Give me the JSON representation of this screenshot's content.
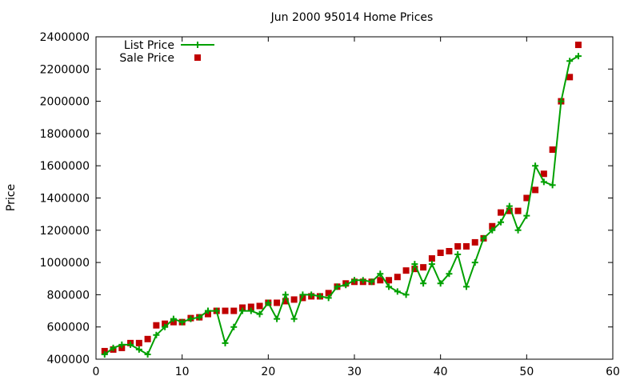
{
  "chart_data": {
    "type": "line",
    "title": "Jun 2000 95014 Home Prices",
    "xlabel": "",
    "ylabel": "Price",
    "xlim": [
      0,
      60
    ],
    "ylim": [
      400000,
      2400000
    ],
    "x_ticks": [
      0,
      10,
      20,
      30,
      40,
      50,
      60
    ],
    "y_ticks": [
      400000,
      600000,
      800000,
      1000000,
      1200000,
      1400000,
      1600000,
      1800000,
      2000000,
      2200000,
      2400000
    ],
    "x_tick_labels": [
      "0",
      "10",
      "20",
      "30",
      "40",
      "50",
      "60"
    ],
    "y_tick_labels": [
      "400000",
      "600000",
      "800000",
      "1000000",
      "1200000",
      "1400000",
      "1600000",
      "1800000",
      "2000000",
      "2200000",
      "2400000"
    ],
    "grid": false,
    "legend_position": "top-left",
    "x": [
      1,
      2,
      3,
      4,
      5,
      6,
      7,
      8,
      9,
      10,
      11,
      12,
      13,
      14,
      15,
      16,
      17,
      18,
      19,
      20,
      21,
      22,
      23,
      24,
      25,
      26,
      27,
      28,
      29,
      30,
      31,
      32,
      33,
      34,
      35,
      36,
      37,
      38,
      39,
      40,
      41,
      42,
      43,
      44,
      45,
      46,
      47,
      48,
      49,
      50,
      51,
      52,
      53,
      54,
      55,
      56
    ],
    "series": [
      {
        "name": "List Price",
        "style": "line-plus",
        "color": "#00a000",
        "values": [
          430000,
          470000,
          490000,
          490000,
          460000,
          430000,
          550000,
          600000,
          650000,
          630000,
          650000,
          660000,
          700000,
          700000,
          500000,
          600000,
          700000,
          700000,
          680000,
          750000,
          650000,
          800000,
          650000,
          800000,
          800000,
          790000,
          780000,
          850000,
          860000,
          890000,
          890000,
          880000,
          930000,
          850000,
          820000,
          800000,
          990000,
          870000,
          990000,
          870000,
          930000,
          1050000,
          850000,
          1000000,
          1150000,
          1200000,
          1250000,
          1350000,
          1200000,
          1290000,
          1600000,
          1500000,
          1480000,
          2000000,
          2250000,
          2280000
        ]
      },
      {
        "name": "Sale Price",
        "style": "square",
        "color": "#c00000",
        "values": [
          450000,
          460000,
          470000,
          500000,
          500000,
          525000,
          610000,
          620000,
          630000,
          630000,
          655000,
          660000,
          680000,
          700000,
          700000,
          700000,
          720000,
          725000,
          730000,
          750000,
          750000,
          760000,
          770000,
          780000,
          790000,
          790000,
          810000,
          850000,
          870000,
          880000,
          880000,
          880000,
          890000,
          890000,
          910000,
          950000,
          960000,
          970000,
          1025000,
          1060000,
          1070000,
          1100000,
          1100000,
          1125000,
          1150000,
          1225000,
          1310000,
          1320000,
          1320000,
          1400000,
          1450000,
          1550000,
          1700000,
          2000000,
          2150000,
          2350000
        ]
      }
    ]
  }
}
